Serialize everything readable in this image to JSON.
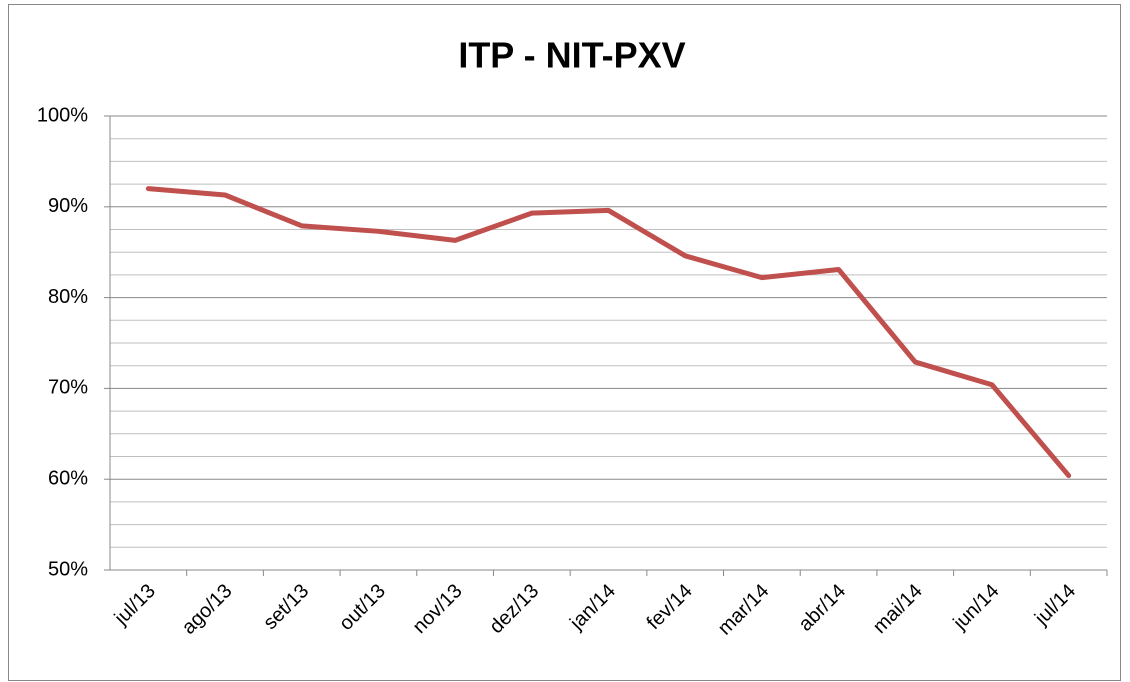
{
  "chart_data": {
    "type": "line",
    "title": "ITP - NIT-PXV",
    "categories": [
      "jul/13",
      "ago/13",
      "set/13",
      "out/13",
      "nov/13",
      "dez/13",
      "jan/14",
      "fev/14",
      "mar/14",
      "abr/14",
      "mai/14",
      "jun/14",
      "jul/14"
    ],
    "series": [
      {
        "name": "ITP",
        "color": "#c0504d",
        "values": [
          92.0,
          91.3,
          87.9,
          87.3,
          86.3,
          89.3,
          89.6,
          84.6,
          82.2,
          83.1,
          72.9,
          70.4,
          60.4
        ]
      }
    ],
    "ylim": [
      50,
      100
    ],
    "yticks": [
      {
        "value": 50,
        "label": "50%"
      },
      {
        "value": 60,
        "label": "60%"
      },
      {
        "value": 70,
        "label": "70%"
      },
      {
        "value": 80,
        "label": "80%"
      },
      {
        "value": 90,
        "label": "90%"
      },
      {
        "value": 100,
        "label": "100%"
      }
    ],
    "yminorticks": [
      52.5,
      55,
      57.5,
      62.5,
      65,
      67.5,
      72.5,
      75,
      77.5,
      82.5,
      85,
      87.5,
      92.5,
      95,
      97.5
    ],
    "grid": true,
    "legend": false
  }
}
